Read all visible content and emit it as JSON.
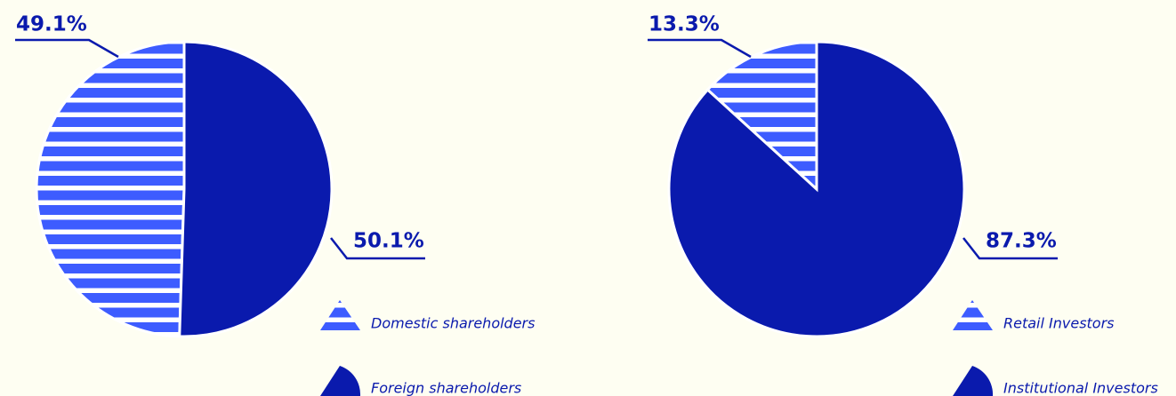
{
  "chart_data": [
    {
      "type": "pie",
      "categories": [
        "Domestic shareholders",
        "Foreign shareholders"
      ],
      "values": [
        49.1,
        50.1
      ],
      "value_labels": [
        "49.1%",
        "50.1%"
      ],
      "colors": [
        "#3d5cff",
        "#0a1aad"
      ],
      "patterns": [
        "stripes",
        "solid"
      ],
      "startangle": 90,
      "direction": "counterclockwise"
    },
    {
      "type": "pie",
      "categories": [
        "Retail Investors",
        "Institutional Investors"
      ],
      "values": [
        13.3,
        87.3
      ],
      "value_labels": [
        "13.3%",
        "87.3%"
      ],
      "colors": [
        "#3d5cff",
        "#0a1aad"
      ],
      "patterns": [
        "stripes",
        "solid"
      ],
      "startangle": 90,
      "direction": "counterclockwise"
    }
  ]
}
